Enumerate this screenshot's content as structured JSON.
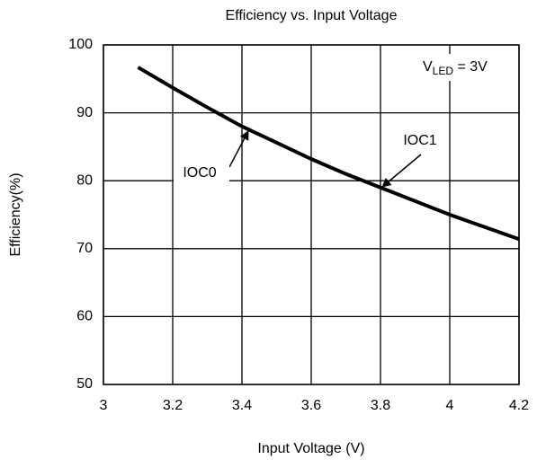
{
  "chart_data": {
    "type": "line",
    "title": "Efficiency vs. Input Voltage",
    "x_label": "Input Voltage (V)",
    "y_label": "Efficiency(%)",
    "x": [
      3.1,
      3.2,
      3.3,
      3.4,
      3.5,
      3.6,
      3.7,
      3.8,
      3.9,
      4.0,
      4.1,
      4.2
    ],
    "series": [
      {
        "name": "IOC0",
        "color": "#000000",
        "values": [
          96.7,
          93.7,
          90.8,
          88.0,
          85.6,
          83.2,
          81.0,
          79.0,
          77.0,
          75.0,
          73.2,
          71.4
        ]
      }
    ],
    "xlim": [
      3,
      4.2
    ],
    "xticks": [
      3,
      3.2,
      3.4,
      3.6,
      3.8,
      4,
      4.2
    ],
    "ylim": [
      50,
      100
    ],
    "yticks": [
      50,
      60,
      70,
      80,
      90,
      100
    ],
    "grid": true,
    "annotations": [
      {
        "text": "IOC0"
      },
      {
        "text": "IOC1"
      },
      {
        "text": "V",
        "sub": "LED",
        "rest": " = 3V"
      }
    ]
  }
}
